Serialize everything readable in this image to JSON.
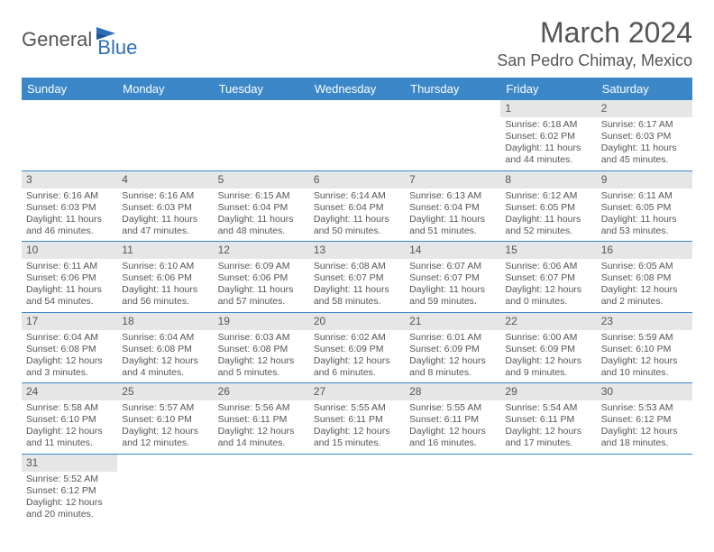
{
  "logo": {
    "text1": "General",
    "text2": "Blue"
  },
  "title": "March 2024",
  "location": "San Pedro Chimay, Mexico",
  "colors": {
    "header_bg": "#3b87c8",
    "header_fg": "#ffffff",
    "daynum_bg": "#e6e6e6",
    "border": "#3b87c8",
    "text": "#555555",
    "logo_gray": "#555555",
    "logo_blue": "#2c6fb5",
    "background": "#ffffff"
  },
  "typography": {
    "title_fontsize": 32,
    "location_fontsize": 18,
    "header_fontsize": 13,
    "daynum_fontsize": 12,
    "content_fontsize": 10.5,
    "font_family": "Arial"
  },
  "weekdays": [
    "Sunday",
    "Monday",
    "Tuesday",
    "Wednesday",
    "Thursday",
    "Friday",
    "Saturday"
  ],
  "weeks": [
    [
      null,
      null,
      null,
      null,
      null,
      {
        "n": "1",
        "sr": "Sunrise: 6:18 AM",
        "ss": "Sunset: 6:02 PM",
        "dl": "Daylight: 11 hours and 44 minutes."
      },
      {
        "n": "2",
        "sr": "Sunrise: 6:17 AM",
        "ss": "Sunset: 6:03 PM",
        "dl": "Daylight: 11 hours and 45 minutes."
      }
    ],
    [
      {
        "n": "3",
        "sr": "Sunrise: 6:16 AM",
        "ss": "Sunset: 6:03 PM",
        "dl": "Daylight: 11 hours and 46 minutes."
      },
      {
        "n": "4",
        "sr": "Sunrise: 6:16 AM",
        "ss": "Sunset: 6:03 PM",
        "dl": "Daylight: 11 hours and 47 minutes."
      },
      {
        "n": "5",
        "sr": "Sunrise: 6:15 AM",
        "ss": "Sunset: 6:04 PM",
        "dl": "Daylight: 11 hours and 48 minutes."
      },
      {
        "n": "6",
        "sr": "Sunrise: 6:14 AM",
        "ss": "Sunset: 6:04 PM",
        "dl": "Daylight: 11 hours and 50 minutes."
      },
      {
        "n": "7",
        "sr": "Sunrise: 6:13 AM",
        "ss": "Sunset: 6:04 PM",
        "dl": "Daylight: 11 hours and 51 minutes."
      },
      {
        "n": "8",
        "sr": "Sunrise: 6:12 AM",
        "ss": "Sunset: 6:05 PM",
        "dl": "Daylight: 11 hours and 52 minutes."
      },
      {
        "n": "9",
        "sr": "Sunrise: 6:11 AM",
        "ss": "Sunset: 6:05 PM",
        "dl": "Daylight: 11 hours and 53 minutes."
      }
    ],
    [
      {
        "n": "10",
        "sr": "Sunrise: 6:11 AM",
        "ss": "Sunset: 6:06 PM",
        "dl": "Daylight: 11 hours and 54 minutes."
      },
      {
        "n": "11",
        "sr": "Sunrise: 6:10 AM",
        "ss": "Sunset: 6:06 PM",
        "dl": "Daylight: 11 hours and 56 minutes."
      },
      {
        "n": "12",
        "sr": "Sunrise: 6:09 AM",
        "ss": "Sunset: 6:06 PM",
        "dl": "Daylight: 11 hours and 57 minutes."
      },
      {
        "n": "13",
        "sr": "Sunrise: 6:08 AM",
        "ss": "Sunset: 6:07 PM",
        "dl": "Daylight: 11 hours and 58 minutes."
      },
      {
        "n": "14",
        "sr": "Sunrise: 6:07 AM",
        "ss": "Sunset: 6:07 PM",
        "dl": "Daylight: 11 hours and 59 minutes."
      },
      {
        "n": "15",
        "sr": "Sunrise: 6:06 AM",
        "ss": "Sunset: 6:07 PM",
        "dl": "Daylight: 12 hours and 0 minutes."
      },
      {
        "n": "16",
        "sr": "Sunrise: 6:05 AM",
        "ss": "Sunset: 6:08 PM",
        "dl": "Daylight: 12 hours and 2 minutes."
      }
    ],
    [
      {
        "n": "17",
        "sr": "Sunrise: 6:04 AM",
        "ss": "Sunset: 6:08 PM",
        "dl": "Daylight: 12 hours and 3 minutes."
      },
      {
        "n": "18",
        "sr": "Sunrise: 6:04 AM",
        "ss": "Sunset: 6:08 PM",
        "dl": "Daylight: 12 hours and 4 minutes."
      },
      {
        "n": "19",
        "sr": "Sunrise: 6:03 AM",
        "ss": "Sunset: 6:08 PM",
        "dl": "Daylight: 12 hours and 5 minutes."
      },
      {
        "n": "20",
        "sr": "Sunrise: 6:02 AM",
        "ss": "Sunset: 6:09 PM",
        "dl": "Daylight: 12 hours and 6 minutes."
      },
      {
        "n": "21",
        "sr": "Sunrise: 6:01 AM",
        "ss": "Sunset: 6:09 PM",
        "dl": "Daylight: 12 hours and 8 minutes."
      },
      {
        "n": "22",
        "sr": "Sunrise: 6:00 AM",
        "ss": "Sunset: 6:09 PM",
        "dl": "Daylight: 12 hours and 9 minutes."
      },
      {
        "n": "23",
        "sr": "Sunrise: 5:59 AM",
        "ss": "Sunset: 6:10 PM",
        "dl": "Daylight: 12 hours and 10 minutes."
      }
    ],
    [
      {
        "n": "24",
        "sr": "Sunrise: 5:58 AM",
        "ss": "Sunset: 6:10 PM",
        "dl": "Daylight: 12 hours and 11 minutes."
      },
      {
        "n": "25",
        "sr": "Sunrise: 5:57 AM",
        "ss": "Sunset: 6:10 PM",
        "dl": "Daylight: 12 hours and 12 minutes."
      },
      {
        "n": "26",
        "sr": "Sunrise: 5:56 AM",
        "ss": "Sunset: 6:11 PM",
        "dl": "Daylight: 12 hours and 14 minutes."
      },
      {
        "n": "27",
        "sr": "Sunrise: 5:55 AM",
        "ss": "Sunset: 6:11 PM",
        "dl": "Daylight: 12 hours and 15 minutes."
      },
      {
        "n": "28",
        "sr": "Sunrise: 5:55 AM",
        "ss": "Sunset: 6:11 PM",
        "dl": "Daylight: 12 hours and 16 minutes."
      },
      {
        "n": "29",
        "sr": "Sunrise: 5:54 AM",
        "ss": "Sunset: 6:11 PM",
        "dl": "Daylight: 12 hours and 17 minutes."
      },
      {
        "n": "30",
        "sr": "Sunrise: 5:53 AM",
        "ss": "Sunset: 6:12 PM",
        "dl": "Daylight: 12 hours and 18 minutes."
      }
    ],
    [
      {
        "n": "31",
        "sr": "Sunrise: 5:52 AM",
        "ss": "Sunset: 6:12 PM",
        "dl": "Daylight: 12 hours and 20 minutes."
      },
      null,
      null,
      null,
      null,
      null,
      null
    ]
  ]
}
